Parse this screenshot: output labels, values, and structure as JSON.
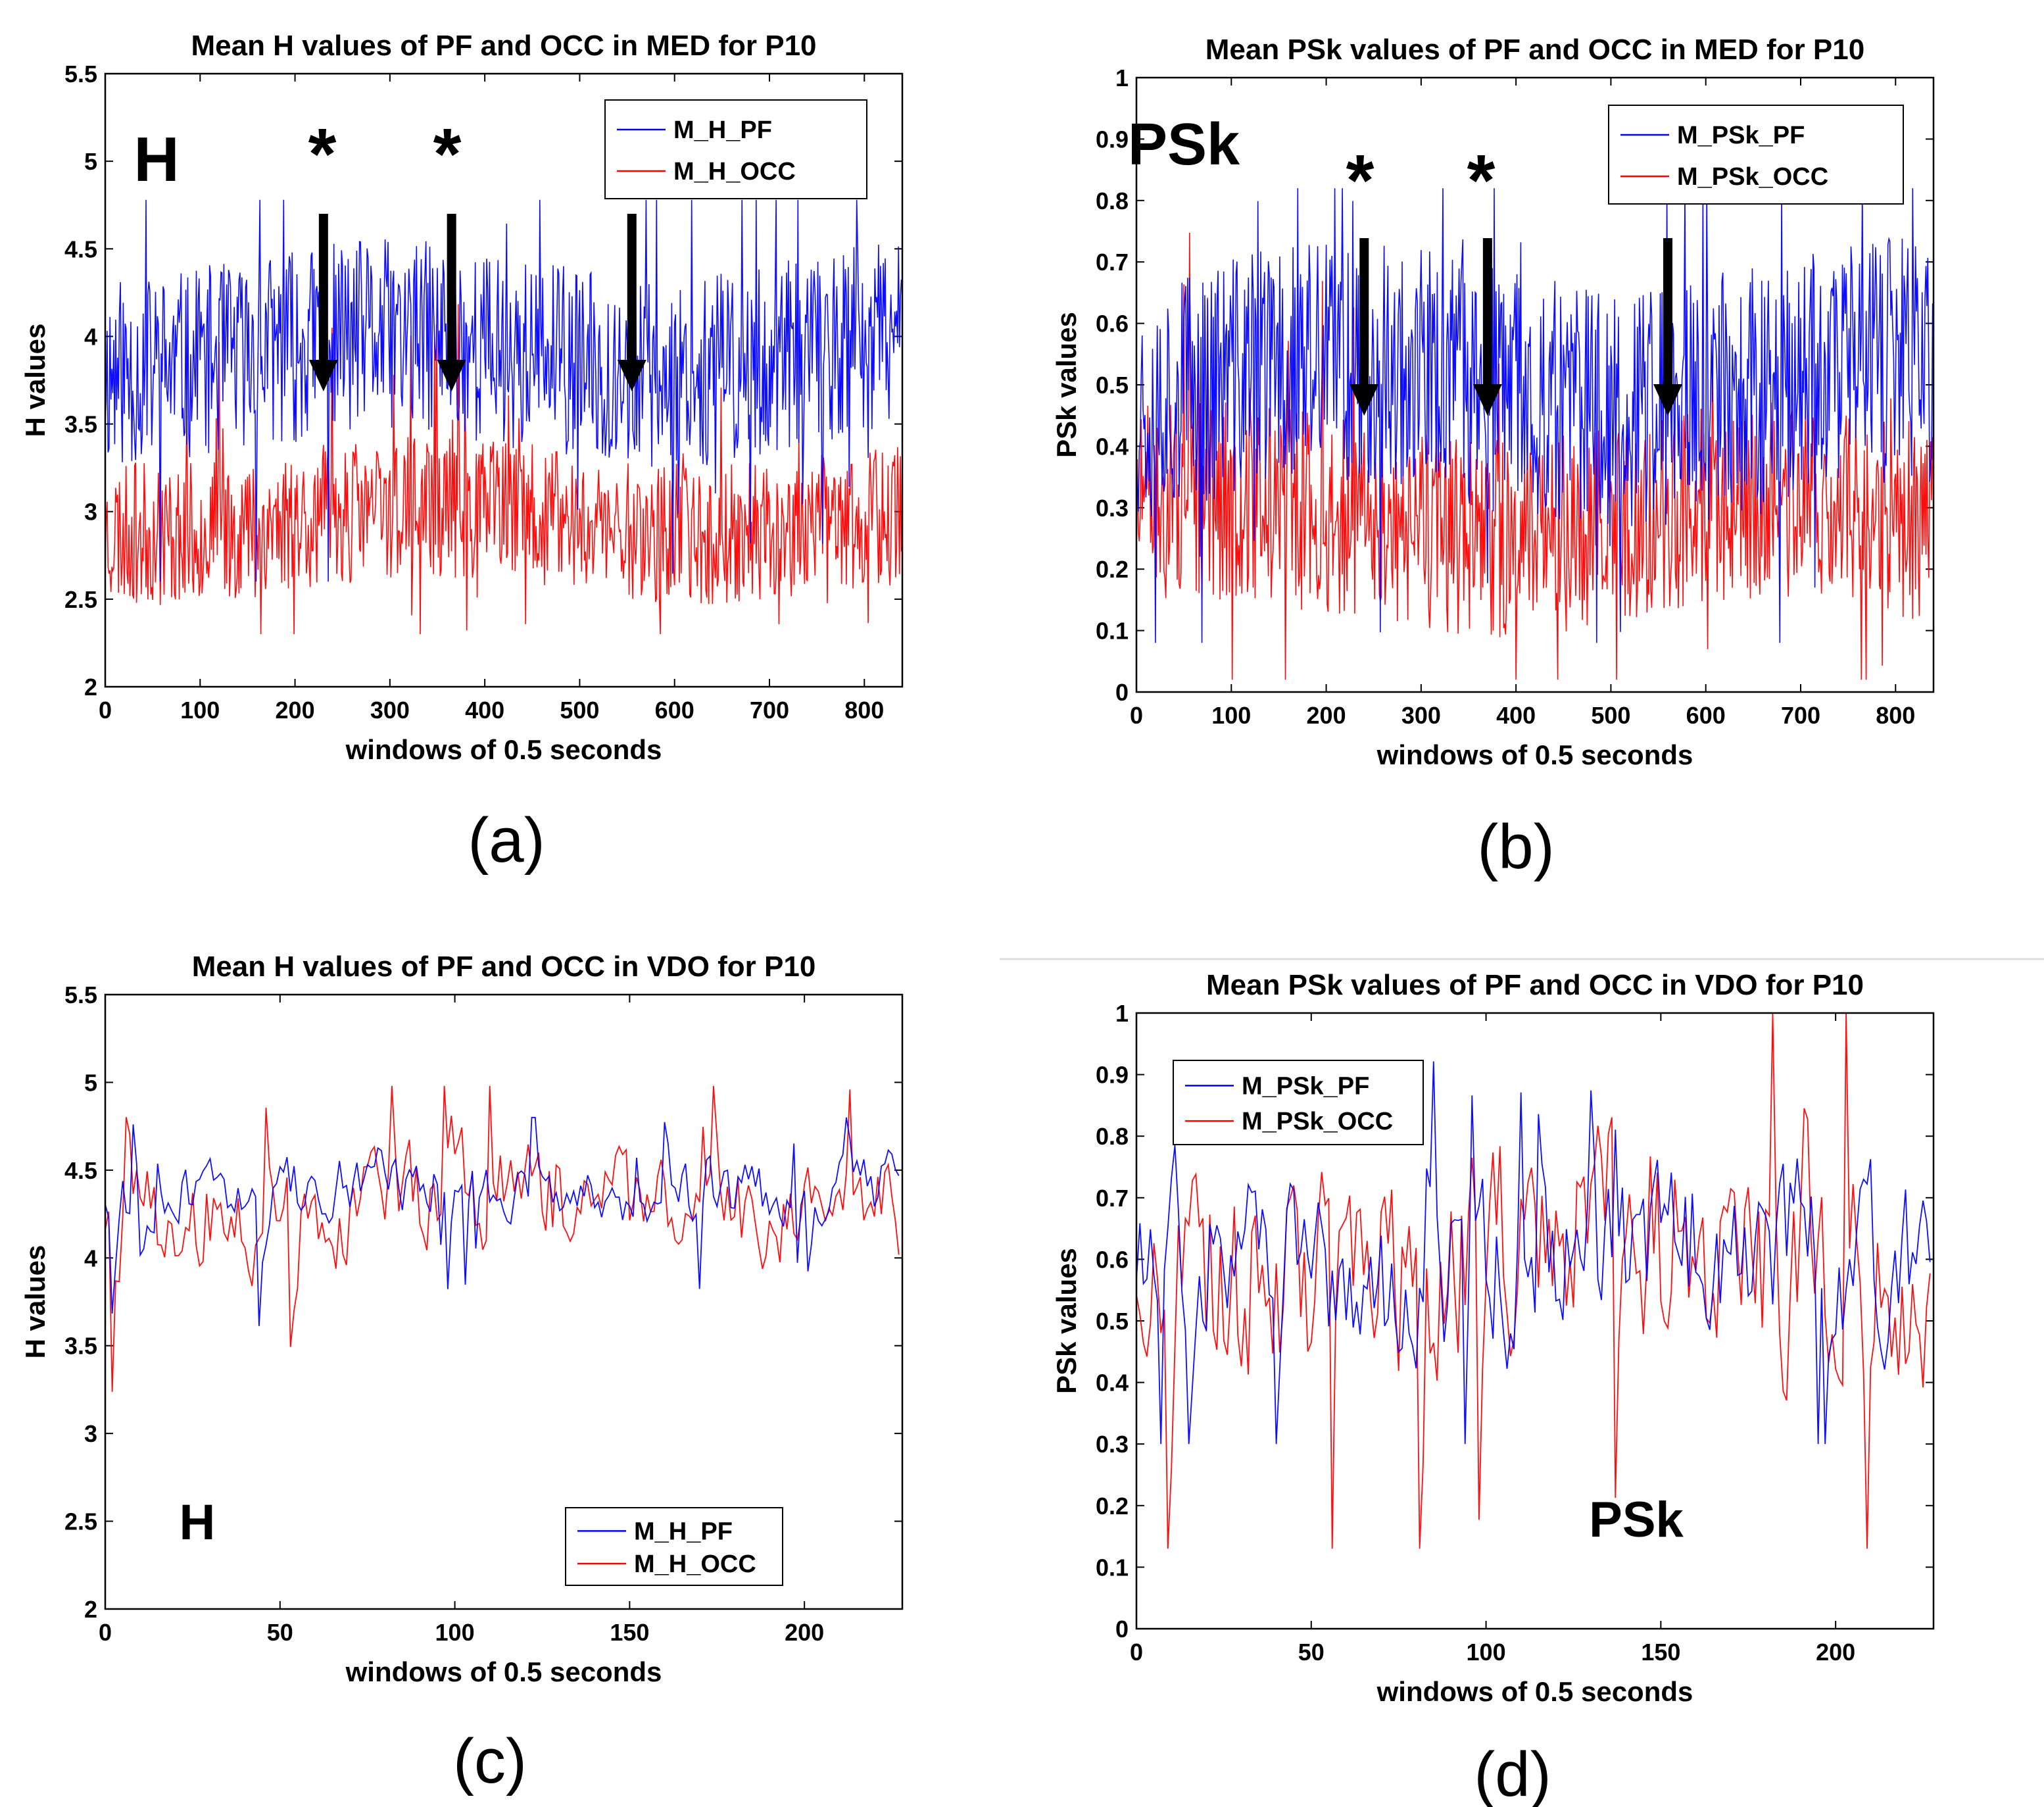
{
  "panels": [
    {
      "id": "a",
      "caption": "(a)",
      "title": "Mean H values of PF and OCC in MED for P10",
      "xlabel": "windows of 0.5 seconds",
      "ylabel": "H values",
      "annotation": "H",
      "stars": [
        "*",
        "*"
      ],
      "legend_position": "top-right",
      "colors": {
        "pf": "#0000ff",
        "occ": "#ff0000"
      },
      "chart_data": {
        "type": "line",
        "xlim": [
          0,
          840
        ],
        "ylim": [
          2,
          5.5
        ],
        "xticks": [
          0,
          100,
          200,
          300,
          400,
          500,
          600,
          700,
          800
        ],
        "yticks": [
          2,
          2.5,
          3,
          3.5,
          4,
          4.5,
          5,
          5.5
        ],
        "arrow_x": [
          230,
          365,
          555
        ],
        "series": [
          {
            "name": "M_H_PF",
            "n": 840,
            "approx_mean": 3.9,
            "approx_range": [
              2.6,
              4.78
            ],
            "seed": 11
          },
          {
            "name": "M_H_OCC",
            "n": 840,
            "approx_mean": 2.95,
            "approx_range": [
              2.3,
              4.6
            ],
            "seed": 23
          }
        ]
      }
    },
    {
      "id": "b",
      "caption": "(b)",
      "title": "Mean PSk values of PF and OCC in MED for P10",
      "xlabel": "windows of 0.5 seconds",
      "ylabel": "PSk values",
      "annotation": "PSk",
      "stars": [
        "*",
        "*"
      ],
      "legend_position": "top-right",
      "colors": {
        "pf": "#0000ff",
        "occ": "#ff0000"
      },
      "chart_data": {
        "type": "line",
        "xlim": [
          0,
          840
        ],
        "ylim": [
          0,
          1
        ],
        "xticks": [
          0,
          100,
          200,
          300,
          400,
          500,
          600,
          700,
          800
        ],
        "yticks": [
          0,
          0.1,
          0.2,
          0.3,
          0.4,
          0.5,
          0.6,
          0.7,
          0.8,
          0.9,
          1
        ],
        "arrow_x": [
          240,
          370,
          560
        ],
        "series": [
          {
            "name": "M_PSk_PF",
            "n": 840,
            "approx_mean": 0.5,
            "approx_range": [
              0.08,
              0.82
            ],
            "seed": 37
          },
          {
            "name": "M_PSk_OCC",
            "n": 840,
            "approx_mean": 0.28,
            "approx_range": [
              0.02,
              0.99
            ],
            "seed": 51
          }
        ]
      }
    },
    {
      "id": "c",
      "caption": "(c)",
      "title": "Mean H values of PF and OCC in VDO for P10",
      "xlabel": "windows of 0.5 seconds",
      "ylabel": "H values",
      "annotation": "H",
      "stars": [],
      "legend_position": "bottom-right",
      "colors": {
        "pf": "#0000ff",
        "occ": "#ff0000"
      },
      "chart_data": {
        "type": "line",
        "xlim": [
          0,
          228
        ],
        "ylim": [
          2,
          5.5
        ],
        "xticks": [
          0,
          50,
          100,
          150,
          200
        ],
        "yticks": [
          2,
          2.5,
          3,
          3.5,
          4,
          4.5,
          5,
          5.5
        ],
        "arrow_x": [],
        "series": [
          {
            "name": "M_H_PF",
            "n": 228,
            "approx_mean": 4.4,
            "approx_range": [
              2.9,
              4.8
            ],
            "seed": 67
          },
          {
            "name": "M_H_OCC",
            "n": 228,
            "approx_mean": 4.3,
            "approx_range": [
              2.78,
              4.98
            ],
            "seed": 79
          }
        ]
      }
    },
    {
      "id": "d",
      "caption": "(d)",
      "title": "Mean PSk values of PF and OCC in VDO for P10",
      "xlabel": "windows of 0.5 seconds",
      "ylabel": "PSk values",
      "annotation": "PSk",
      "stars": [],
      "legend_position": "top-left",
      "colors": {
        "pf": "#0000ff",
        "occ": "#ff0000"
      },
      "chart_data": {
        "type": "line",
        "xlim": [
          0,
          228
        ],
        "ylim": [
          0,
          1
        ],
        "xticks": [
          0,
          50,
          100,
          150,
          200
        ],
        "yticks": [
          0,
          0.1,
          0.2,
          0.3,
          0.4,
          0.5,
          0.6,
          0.7,
          0.8,
          0.9,
          1
        ],
        "arrow_x": [],
        "series": [
          {
            "name": "M_PSk_PF",
            "n": 228,
            "approx_mean": 0.6,
            "approx_range": [
              0.3,
              0.96
            ],
            "seed": 83
          },
          {
            "name": "M_PSk_OCC",
            "n": 228,
            "approx_mean": 0.6,
            "approx_range": [
              0.13,
              1.0
            ],
            "seed": 97
          }
        ]
      }
    }
  ]
}
